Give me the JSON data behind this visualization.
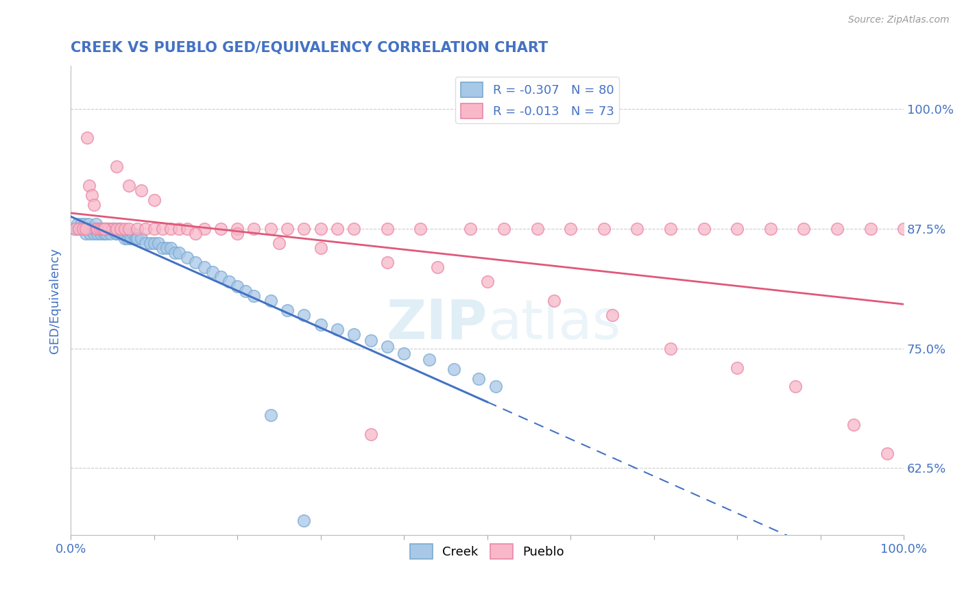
{
  "title": "CREEK VS PUEBLO GED/EQUIVALENCY CORRELATION CHART",
  "source_text": "Source: ZipAtlas.com",
  "ylabel": "GED/Equivalency",
  "xlim": [
    0.0,
    1.0
  ],
  "ylim": [
    0.555,
    1.045
  ],
  "yticks": [
    0.625,
    0.75,
    0.875,
    1.0
  ],
  "ytick_labels": [
    "62.5%",
    "75.0%",
    "87.5%",
    "100.0%"
  ],
  "xticks": [
    0.0,
    0.1,
    0.2,
    0.3,
    0.4,
    0.5,
    0.6,
    0.7,
    0.8,
    0.9,
    1.0
  ],
  "creek_color": "#a8c8e8",
  "creek_edge_color": "#7aaad0",
  "pueblo_color": "#f8b8c8",
  "pueblo_edge_color": "#e888a8",
  "creek_line_color": "#4472c4",
  "pueblo_line_color": "#e05878",
  "title_color": "#4472c4",
  "axis_color": "#4472c4",
  "legend_r_creek": "R = -0.307",
  "legend_n_creek": "N = 80",
  "legend_r_pueblo": "R = -0.013",
  "legend_n_pueblo": "N = 73",
  "creek_label": "Creek",
  "pueblo_label": "Pueblo",
  "creek_R": -0.307,
  "creek_N": 80,
  "pueblo_R": -0.013,
  "pueblo_N": 73,
  "creek_x": [
    0.005,
    0.007,
    0.008,
    0.01,
    0.012,
    0.013,
    0.015,
    0.016,
    0.018,
    0.02,
    0.021,
    0.022,
    0.023,
    0.025,
    0.026,
    0.027,
    0.028,
    0.03,
    0.03,
    0.032,
    0.033,
    0.035,
    0.036,
    0.038,
    0.04,
    0.04,
    0.042,
    0.043,
    0.045,
    0.046,
    0.048,
    0.05,
    0.052,
    0.054,
    0.055,
    0.056,
    0.058,
    0.06,
    0.062,
    0.065,
    0.068,
    0.07,
    0.072,
    0.075,
    0.078,
    0.08,
    0.085,
    0.09,
    0.095,
    0.1,
    0.105,
    0.11,
    0.115,
    0.12,
    0.125,
    0.13,
    0.14,
    0.15,
    0.16,
    0.17,
    0.18,
    0.19,
    0.2,
    0.21,
    0.22,
    0.24,
    0.26,
    0.28,
    0.3,
    0.32,
    0.34,
    0.36,
    0.38,
    0.4,
    0.43,
    0.46,
    0.49,
    0.51,
    0.24,
    0.28
  ],
  "creek_y": [
    0.875,
    0.875,
    0.88,
    0.875,
    0.88,
    0.875,
    0.875,
    0.88,
    0.87,
    0.875,
    0.88,
    0.875,
    0.87,
    0.875,
    0.875,
    0.875,
    0.87,
    0.875,
    0.88,
    0.87,
    0.875,
    0.875,
    0.87,
    0.875,
    0.875,
    0.87,
    0.875,
    0.87,
    0.875,
    0.875,
    0.87,
    0.875,
    0.875,
    0.87,
    0.875,
    0.87,
    0.875,
    0.87,
    0.87,
    0.865,
    0.865,
    0.87,
    0.865,
    0.87,
    0.865,
    0.865,
    0.865,
    0.86,
    0.86,
    0.86,
    0.86,
    0.855,
    0.855,
    0.855,
    0.85,
    0.85,
    0.845,
    0.84,
    0.835,
    0.83,
    0.825,
    0.82,
    0.815,
    0.81,
    0.805,
    0.8,
    0.79,
    0.785,
    0.775,
    0.77,
    0.765,
    0.758,
    0.752,
    0.745,
    0.738,
    0.728,
    0.718,
    0.71,
    0.68,
    0.57
  ],
  "pueblo_x": [
    0.005,
    0.01,
    0.015,
    0.018,
    0.02,
    0.022,
    0.025,
    0.028,
    0.03,
    0.032,
    0.035,
    0.038,
    0.04,
    0.042,
    0.045,
    0.05,
    0.055,
    0.06,
    0.065,
    0.07,
    0.08,
    0.09,
    0.1,
    0.11,
    0.12,
    0.13,
    0.14,
    0.16,
    0.18,
    0.2,
    0.22,
    0.24,
    0.26,
    0.28,
    0.3,
    0.32,
    0.34,
    0.38,
    0.42,
    0.48,
    0.52,
    0.56,
    0.6,
    0.64,
    0.68,
    0.72,
    0.76,
    0.8,
    0.84,
    0.88,
    0.92,
    0.96,
    1.0,
    0.04,
    0.055,
    0.07,
    0.085,
    0.1,
    0.15,
    0.2,
    0.25,
    0.3,
    0.38,
    0.44,
    0.5,
    0.58,
    0.65,
    0.72,
    0.8,
    0.87,
    0.94,
    0.98,
    0.36
  ],
  "pueblo_y": [
    0.875,
    0.875,
    0.875,
    0.875,
    0.97,
    0.92,
    0.91,
    0.9,
    0.875,
    0.875,
    0.875,
    0.875,
    0.875,
    0.875,
    0.875,
    0.875,
    0.875,
    0.875,
    0.875,
    0.875,
    0.875,
    0.875,
    0.875,
    0.875,
    0.875,
    0.875,
    0.875,
    0.875,
    0.875,
    0.875,
    0.875,
    0.875,
    0.875,
    0.875,
    0.875,
    0.875,
    0.875,
    0.875,
    0.875,
    0.875,
    0.875,
    0.875,
    0.875,
    0.875,
    0.875,
    0.875,
    0.875,
    0.875,
    0.875,
    0.875,
    0.875,
    0.875,
    0.875,
    0.875,
    0.94,
    0.92,
    0.915,
    0.905,
    0.87,
    0.87,
    0.86,
    0.855,
    0.84,
    0.835,
    0.82,
    0.8,
    0.785,
    0.75,
    0.73,
    0.71,
    0.67,
    0.64,
    0.66
  ],
  "grid_color": "#cccccc",
  "background_color": "#ffffff"
}
